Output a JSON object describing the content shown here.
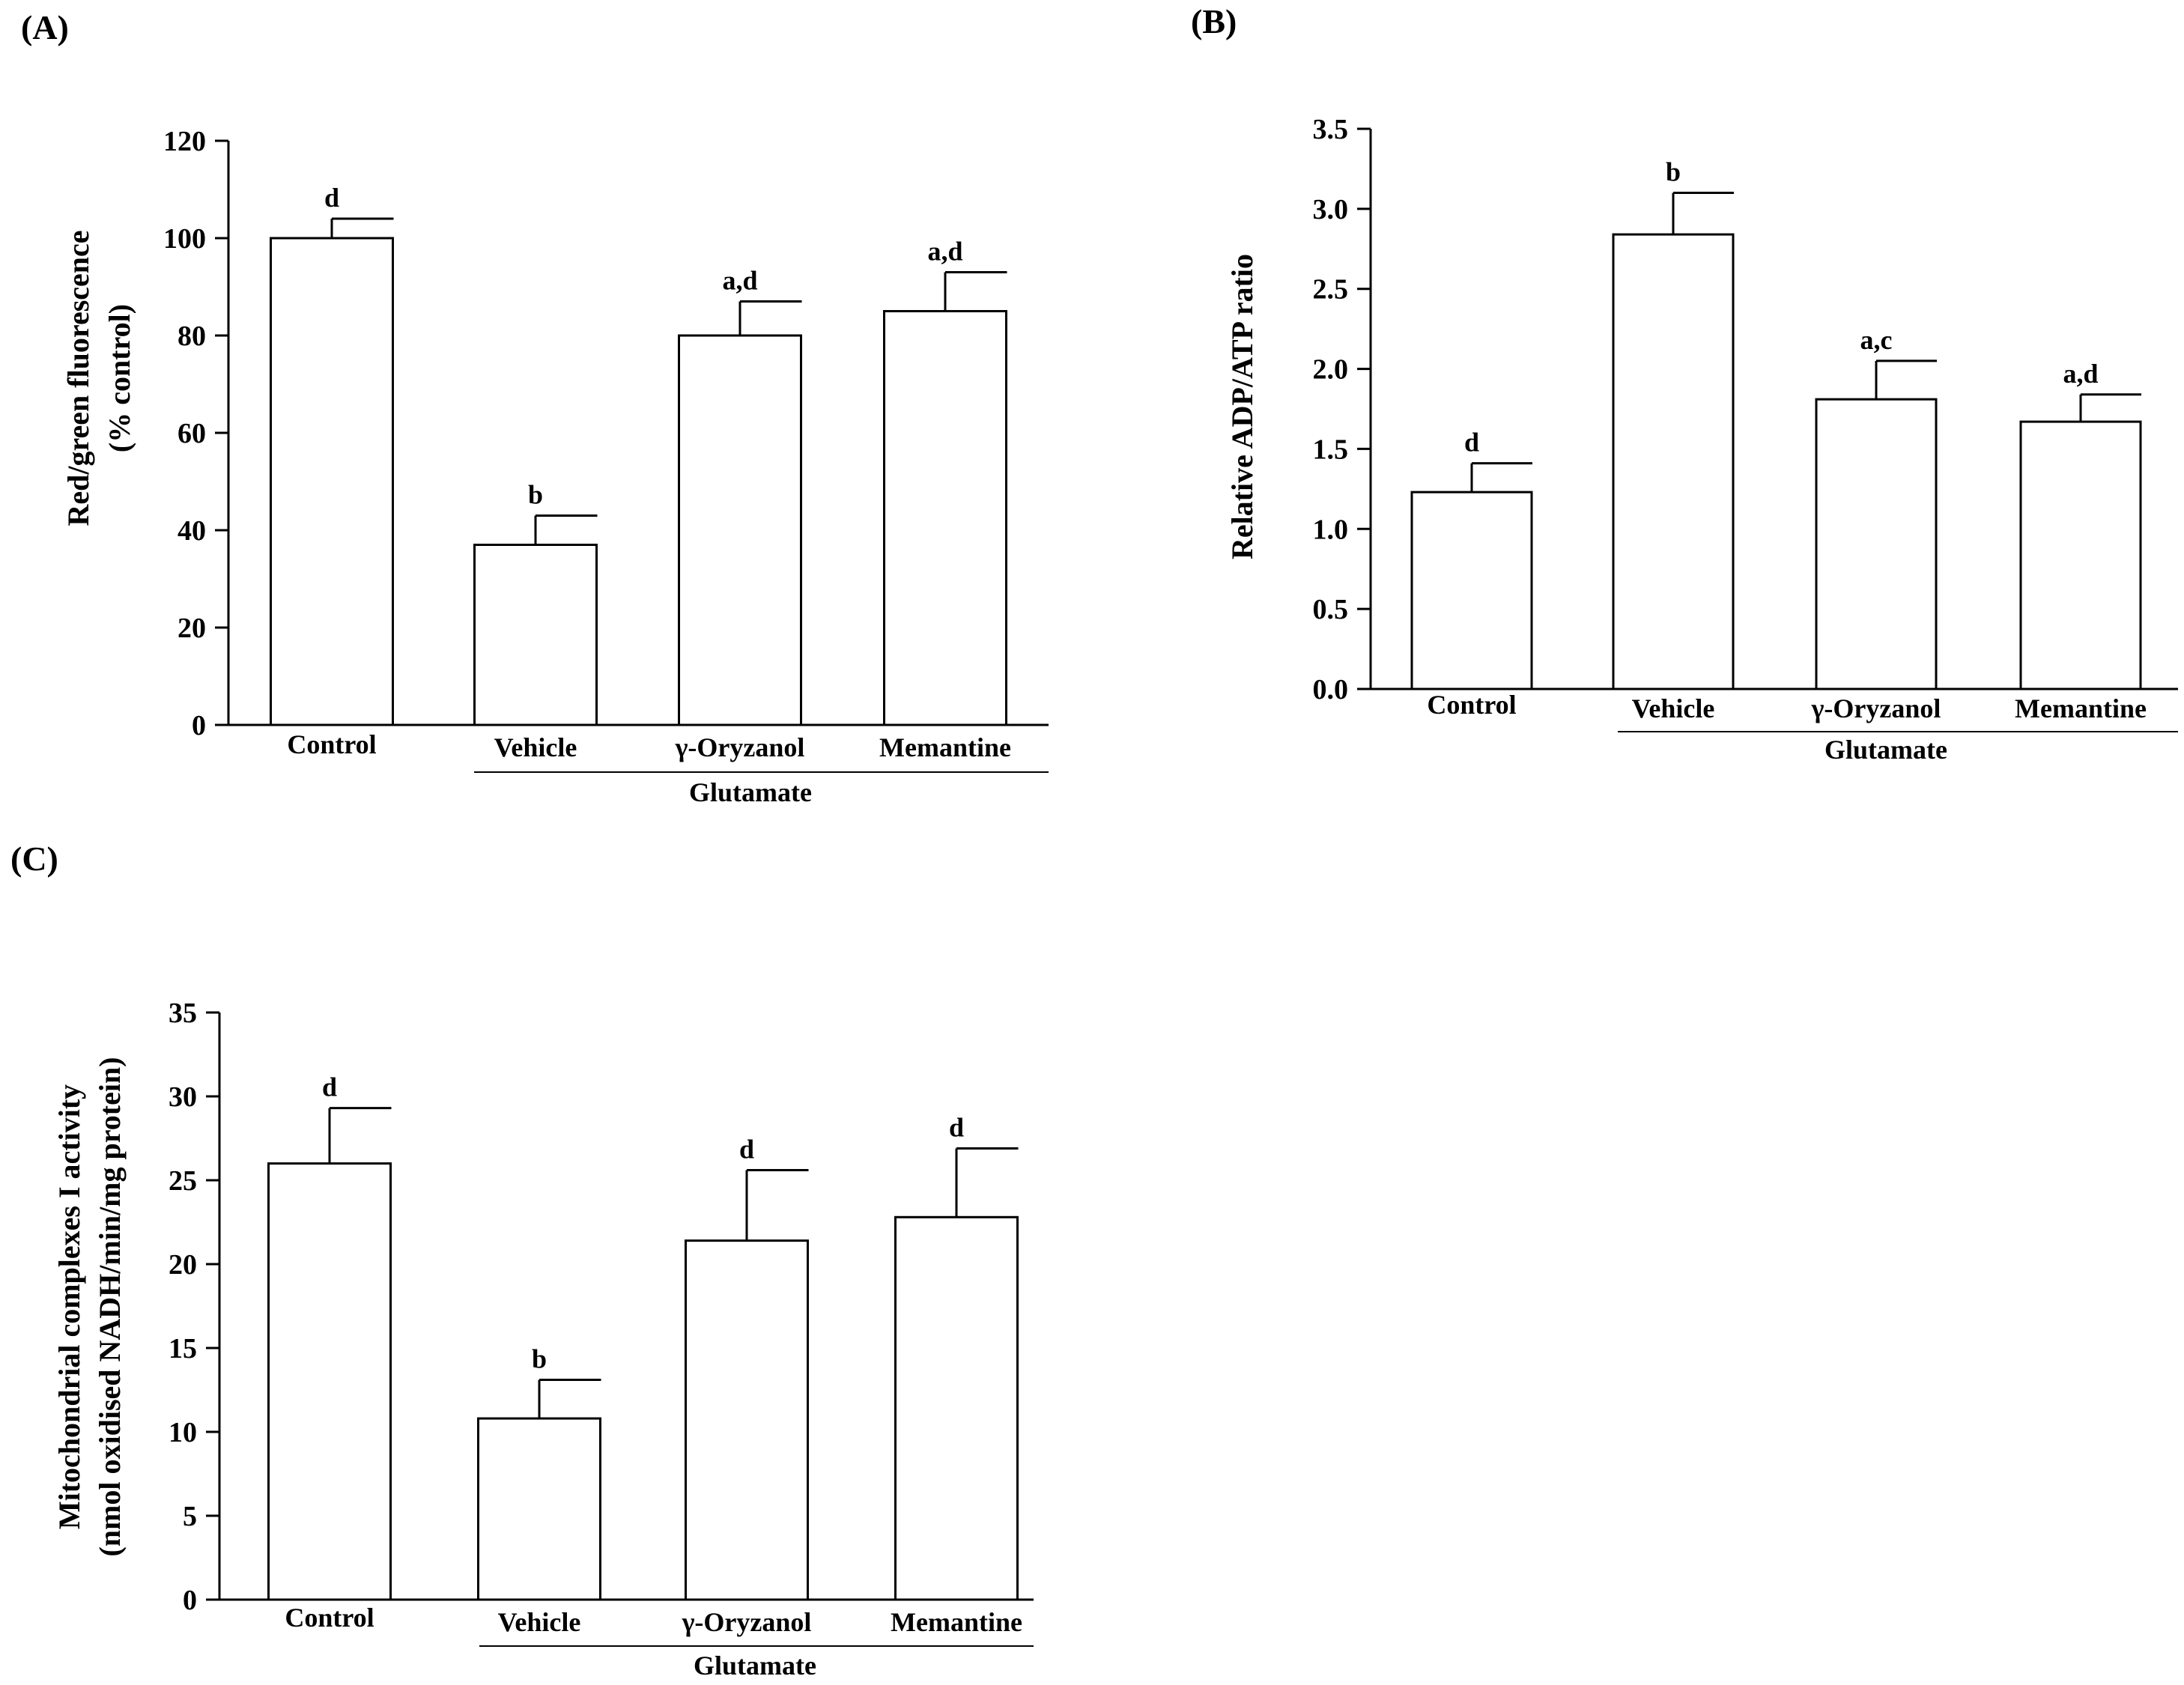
{
  "chart_data": [
    {
      "type": "bar",
      "panel": "(A)",
      "categories": [
        "Control",
        "Vehicle",
        "γ-Oryzanol",
        "Memantine"
      ],
      "values": [
        100,
        37,
        80,
        85
      ],
      "errors": [
        4,
        6,
        7,
        8
      ],
      "significance": [
        "d",
        "b",
        "a,d",
        "a,d"
      ],
      "ylabel": [
        "Red/green fluorescence",
        "(% control)"
      ],
      "yticks": [
        "0",
        "20",
        "40",
        "60",
        "80",
        "100",
        "120"
      ],
      "ylim": [
        0,
        120
      ],
      "group_label": "Glutamate",
      "group_members": [
        "Vehicle",
        "γ-Oryzanol",
        "Memantine"
      ]
    },
    {
      "type": "bar",
      "panel": "(B)",
      "categories": [
        "Control",
        "Vehicle",
        "γ-Oryzanol",
        "Memantine"
      ],
      "values": [
        1.23,
        2.84,
        1.81,
        1.67
      ],
      "errors": [
        0.18,
        0.26,
        0.24,
        0.17
      ],
      "significance": [
        "d",
        "b",
        "a,c",
        "a,d"
      ],
      "ylabel": [
        "Relative ADP/ATP ratio"
      ],
      "yticks": [
        "0.0",
        "0.5",
        "1.0",
        "1.5",
        "2.0",
        "2.5",
        "3.0",
        "3.5"
      ],
      "ylim": [
        0,
        3.5
      ],
      "group_label": "Glutamate",
      "group_members": [
        "Vehicle",
        "γ-Oryzanol",
        "Memantine"
      ]
    },
    {
      "type": "bar",
      "panel": "(C)",
      "categories": [
        "Control",
        "Vehicle",
        "γ-Oryzanol",
        "Memantine"
      ],
      "values": [
        26,
        10.8,
        21.4,
        22.8
      ],
      "errors": [
        3.3,
        2.3,
        4.2,
        4.1
      ],
      "significance": [
        "d",
        "b",
        "d",
        "d"
      ],
      "ylabel": [
        "Mitochondrial complexes I activity",
        "(nmol  oxidised NADH/min/mg protein)"
      ],
      "yticks": [
        "0",
        "5",
        "10",
        "15",
        "20",
        "25",
        "30",
        "35"
      ],
      "ylim": [
        0,
        35
      ],
      "group_label": "Glutamate",
      "group_members": [
        "Vehicle",
        "γ-Oryzanol",
        "Memantine"
      ]
    }
  ]
}
